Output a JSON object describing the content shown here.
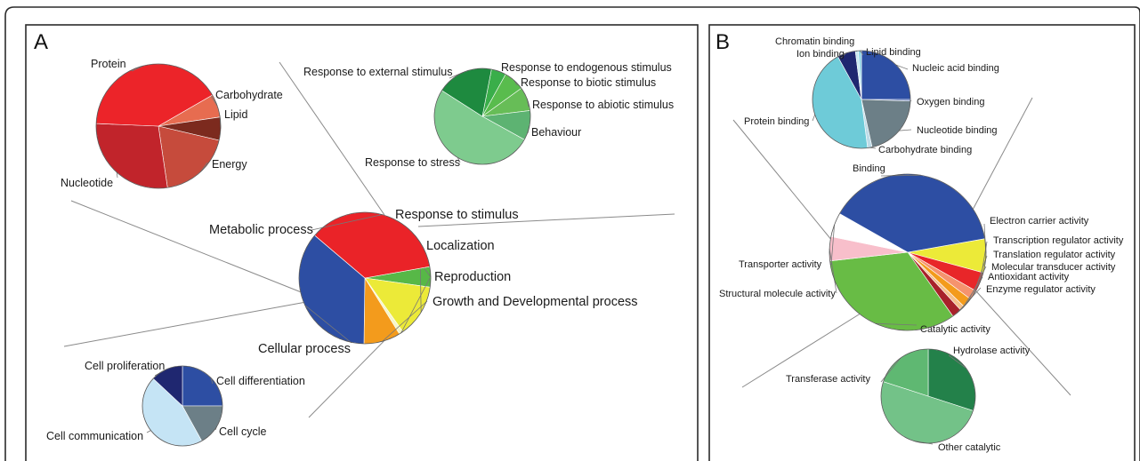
{
  "panels": [
    {
      "letter": "A"
    },
    {
      "letter": "B"
    }
  ],
  "chart_data": [
    {
      "type": "pie",
      "panel": "A",
      "role": "main",
      "slices": [
        {
          "label": "Response to stimulus",
          "value": 5,
          "color": "#57b847"
        },
        {
          "label": "Localization",
          "value": 13,
          "color": "#ecea38"
        },
        {
          "label": "Reproduction",
          "value": 1,
          "color": "#f6f6c8"
        },
        {
          "label": "Growth and Developmental process",
          "value": 9,
          "color": "#f39b1c"
        },
        {
          "label": "Cellular process",
          "value": 36,
          "color": "#2d4ea3"
        },
        {
          "label": "Metabolic process",
          "value": 36,
          "color": "#ea2328"
        }
      ]
    },
    {
      "type": "pie",
      "panel": "A",
      "role": "Metabolic process breakdown",
      "slices": [
        {
          "label": "Carbohydrate",
          "value": 6,
          "color": "#e76c50"
        },
        {
          "label": "Lipid",
          "value": 6,
          "color": "#7c2a1e"
        },
        {
          "label": "Energy",
          "value": 19,
          "color": "#c64b3c"
        },
        {
          "label": "Nucleotide",
          "value": 28,
          "color": "#c1242b"
        },
        {
          "label": "Protein",
          "value": 41,
          "color": "#ec2429"
        }
      ]
    },
    {
      "type": "pie",
      "panel": "A",
      "role": "Response to stimulus breakdown",
      "slices": [
        {
          "label": "Response to endogenous stimulus",
          "value": 5,
          "color": "#3aae4a"
        },
        {
          "label": "Response to biotic stimulus",
          "value": 7,
          "color": "#59bc4d"
        },
        {
          "label": "Response to abiotic stimulus",
          "value": 8,
          "color": "#67bd57"
        },
        {
          "label": "Behaviour",
          "value": 10,
          "color": "#5db372"
        },
        {
          "label": "Response to stress",
          "value": 51,
          "color": "#7ecb8e"
        },
        {
          "label": "Response to external stimulus",
          "value": 19,
          "color": "#1e8a3f"
        }
      ]
    },
    {
      "type": "pie",
      "panel": "A",
      "role": "Cellular process breakdown",
      "slices": [
        {
          "label": "Cell differentiation",
          "value": 25,
          "color": "#2d4ea3"
        },
        {
          "label": "Cell cycle",
          "value": 17,
          "color": "#6c7f87"
        },
        {
          "label": "Cell communication",
          "value": 45,
          "color": "#c5e4f5"
        },
        {
          "label": "Cell proliferation",
          "value": 13,
          "color": "#1f2770"
        }
      ]
    },
    {
      "type": "pie",
      "panel": "B",
      "role": "main",
      "slices": [
        {
          "label": "Electron carrier activity",
          "value": 7,
          "color": "#ecea38"
        },
        {
          "label": "Transcription regulator activity",
          "value": 4,
          "color": "#e82629"
        },
        {
          "label": "Translation regulator activity",
          "value": 2,
          "color": "#f5936e"
        },
        {
          "label": "Molecular transducer activity",
          "value": 2,
          "color": "#f39b1c"
        },
        {
          "label": "Antioxidant activity",
          "value": 1,
          "color": "#f5c08a"
        },
        {
          "label": "Enzyme regulator activity",
          "value": 2,
          "color": "#a8222a"
        },
        {
          "label": "Catalytic activity",
          "value": 33,
          "color": "#68bc45"
        },
        {
          "label": "Structural molecule activity",
          "value": 5,
          "color": "#f8bfcb"
        },
        {
          "label": "Transporter activity",
          "value": 5,
          "color": "#ffffff"
        },
        {
          "label": "Binding",
          "value": 39,
          "color": "#2d4ea3"
        }
      ]
    },
    {
      "type": "pie",
      "panel": "B",
      "role": "Binding breakdown",
      "slices": [
        {
          "label": "Nucleic acid binding",
          "value": 25,
          "color": "#2d4ea3"
        },
        {
          "label": "Oxygen binding",
          "value": 0.5,
          "color": "#5b72b5"
        },
        {
          "label": "Nucleotide binding",
          "value": 21,
          "color": "#6c7f87"
        },
        {
          "label": "Carbohydrate binding",
          "value": 1.5,
          "color": "#bfdce8"
        },
        {
          "label": "Protein binding",
          "value": 44,
          "color": "#6ecbd8"
        },
        {
          "label": "Ion binding",
          "value": 6,
          "color": "#1f2770"
        },
        {
          "label": "Chromatin binding",
          "value": 1,
          "color": "#c8e8f2"
        },
        {
          "label": "Lipid binding",
          "value": 1,
          "color": "#8fd2e4"
        }
      ]
    },
    {
      "type": "pie",
      "panel": "B",
      "role": "Catalytic activity breakdown",
      "slices": [
        {
          "label": "Hydrolase activity",
          "value": 30,
          "color": "#23814a"
        },
        {
          "label": "Other catalytic",
          "value": 50,
          "color": "#73c288"
        },
        {
          "label": "Transferase activity",
          "value": 20,
          "color": "#5fb872"
        }
      ]
    }
  ]
}
